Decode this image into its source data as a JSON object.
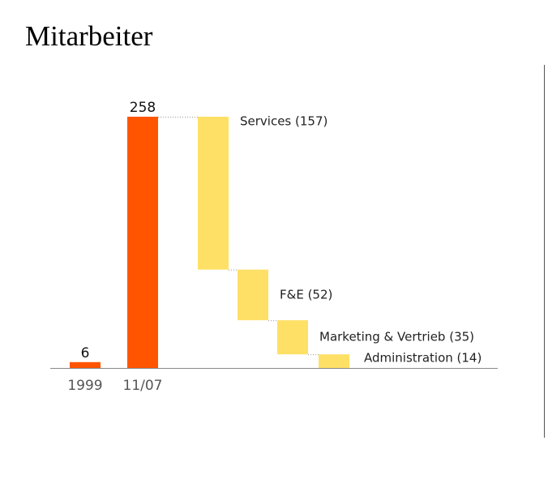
{
  "title": "Mitarbeiter",
  "chart_data": {
    "type": "bar",
    "title": "Mitarbeiter",
    "xlabel": "",
    "ylabel": "",
    "ylim": [
      0,
      258
    ],
    "grid": false,
    "categories": [
      "1999",
      "11/07"
    ],
    "values": [
      6,
      258
    ],
    "bar_color": "#ff5500",
    "breakdown": {
      "color": "#ffe066",
      "segments": [
        {
          "label": "Services (157)",
          "value": 157
        },
        {
          "label": "F&E (52)",
          "value": 52
        },
        {
          "label": "Marketing & Vertrieb (35)",
          "value": 35
        },
        {
          "label": "Administration (14)",
          "value": 14
        }
      ]
    }
  }
}
